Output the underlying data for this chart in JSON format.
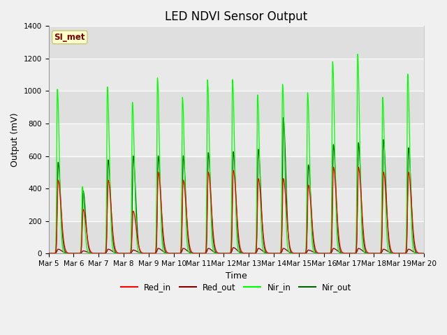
{
  "title": "LED NDVI Sensor Output",
  "xlabel": "Time",
  "ylabel": "Output (mV)",
  "ylim": [
    0,
    1400
  ],
  "background_color": "#f0f0f0",
  "plot_bg_color": "#e8e8e8",
  "annotation_label": "SI_met",
  "annotation_bg": "#ffffcc",
  "annotation_fg": "#800000",
  "annotation_border": "#cccc88",
  "x_tick_labels": [
    "Mar 5",
    "Mar 6",
    "Mar 7",
    "Mar 8",
    "Mar 9",
    "Mar 10",
    "Mar 11",
    "Mar 12",
    "Mar 13",
    "Mar 14",
    "Mar 15",
    "Mar 16",
    "Mar 17",
    "Mar 18",
    "Mar 19",
    "Mar 20"
  ],
  "legend_entries": [
    "Red_in",
    "Red_out",
    "Nir_in",
    "Nir_out"
  ],
  "legend_colors": [
    "#ff0000",
    "#800000",
    "#00ff00",
    "#006400"
  ],
  "title_fontsize": 12,
  "axis_fontsize": 9,
  "tick_fontsize": 7.5,
  "n_days": 15,
  "red_in_peaks": [
    450,
    270,
    450,
    260,
    500,
    450,
    500,
    510,
    460,
    460,
    420,
    530,
    530,
    500,
    500
  ],
  "red_out_peaks": [
    25,
    15,
    25,
    20,
    30,
    30,
    30,
    35,
    30,
    30,
    20,
    30,
    30,
    25,
    25
  ],
  "nir_in_peaks": [
    1010,
    410,
    1025,
    930,
    1080,
    960,
    1070,
    1070,
    975,
    1040,
    990,
    1180,
    1225,
    960,
    1105
  ],
  "nir_out_peaks": [
    560,
    385,
    575,
    600,
    600,
    600,
    620,
    625,
    640,
    835,
    545,
    670,
    680,
    700,
    650
  ]
}
